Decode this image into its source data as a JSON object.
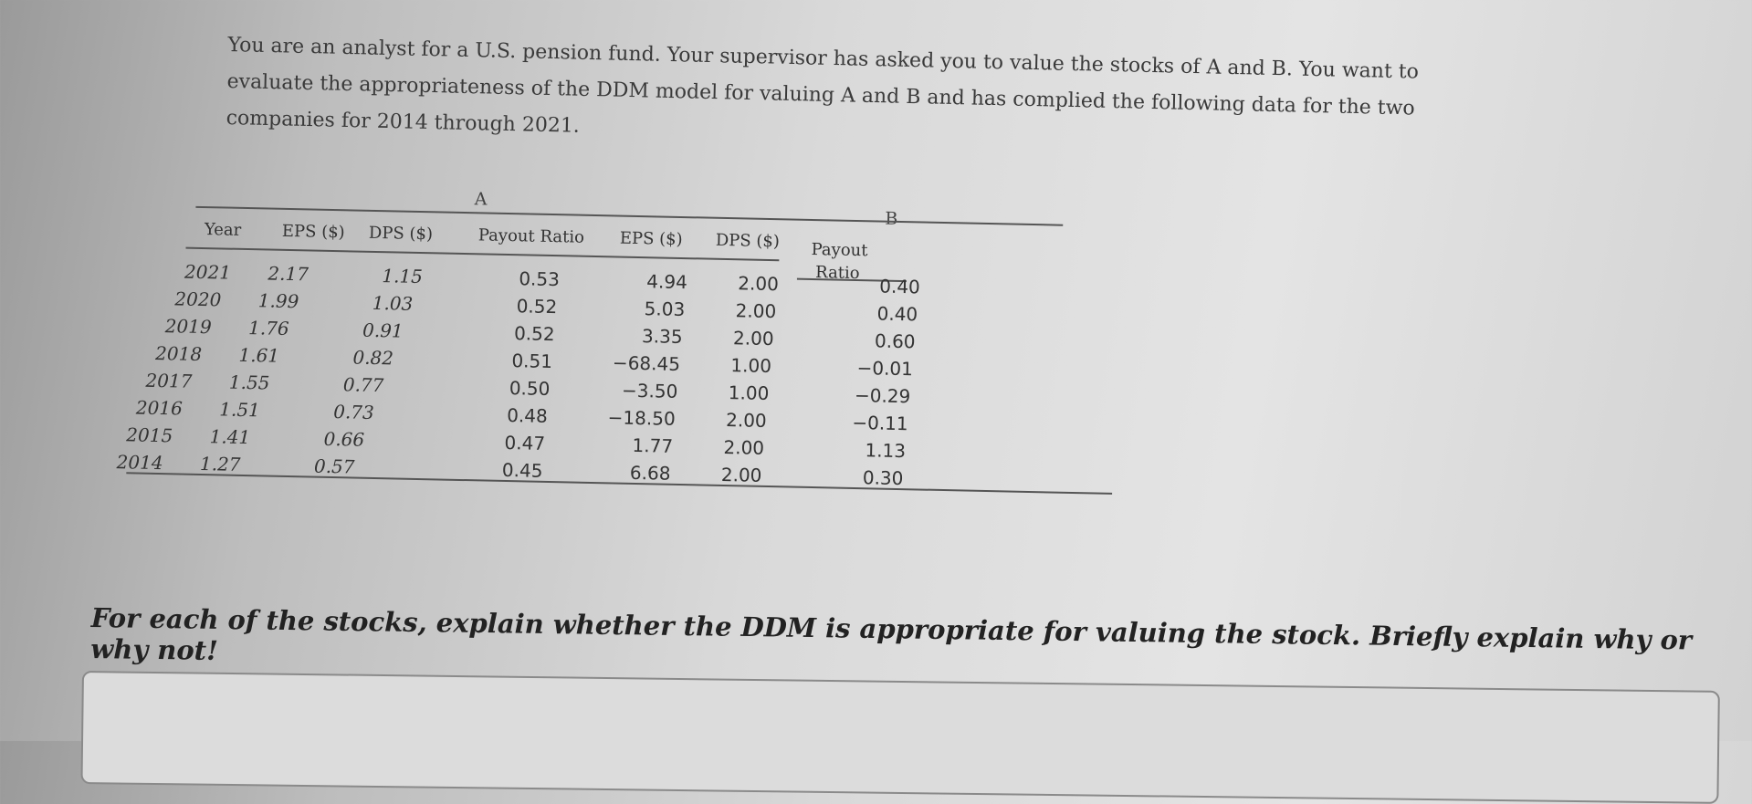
{
  "intro": {
    "line1": "You are an analyst for a U.S. pension fund. Your supervisor has asked you to value the stocks of A and B. You want to",
    "line2": "evaluate the appropriateness of the DDM model for valuing A and B and has complied the following data for the two",
    "line3": "companies for 2014 through 2021."
  },
  "table": {
    "group_a": "A",
    "group_b": "B",
    "headers": {
      "year": "Year",
      "a_eps": "EPS ($)",
      "a_dps": "DPS ($)",
      "a_payout": "Payout Ratio",
      "b_eps": "EPS ($)",
      "b_dps": "DPS ($)",
      "b_payout_1": "Payout",
      "b_payout_2": "Ratio"
    },
    "rows": [
      {
        "year": "2021",
        "a_eps": "2.17",
        "a_dps": "1.15",
        "a_payout": "0.53",
        "b_eps": "4.94",
        "b_dps": "2.00",
        "b_payout": "0.40"
      },
      {
        "year": "2020",
        "a_eps": "1.99",
        "a_dps": "1.03",
        "a_payout": "0.52",
        "b_eps": "5.03",
        "b_dps": "2.00",
        "b_payout": "0.40"
      },
      {
        "year": "2019",
        "a_eps": "1.76",
        "a_dps": "0.91",
        "a_payout": "0.52",
        "b_eps": "3.35",
        "b_dps": "2.00",
        "b_payout": "0.60"
      },
      {
        "year": "2018",
        "a_eps": "1.61",
        "a_dps": "0.82",
        "a_payout": "0.51",
        "b_eps": "−68.45",
        "b_dps": "1.00",
        "b_payout": "−0.01"
      },
      {
        "year": "2017",
        "a_eps": "1.55",
        "a_dps": "0.77",
        "a_payout": "0.50",
        "b_eps": "−3.50",
        "b_dps": "1.00",
        "b_payout": "−0.29"
      },
      {
        "year": "2016",
        "a_eps": "1.51",
        "a_dps": "0.73",
        "a_payout": "0.48",
        "b_eps": "−18.50",
        "b_dps": "2.00",
        "b_payout": "−0.11"
      },
      {
        "year": "2015",
        "a_eps": "1.41",
        "a_dps": "0.66",
        "a_payout": "0.47",
        "b_eps": "1.77",
        "b_dps": "2.00",
        "b_payout": "1.13"
      },
      {
        "year": "2014",
        "a_eps": "1.27",
        "a_dps": "0.57",
        "a_payout": "0.45",
        "b_eps": "6.68",
        "b_dps": "2.00",
        "b_payout": "0.30"
      }
    ]
  },
  "question": "For each of the stocks, explain whether the DDM is appropriate for valuing the stock. Briefly explain why or why not!",
  "answer": {
    "value": ""
  }
}
